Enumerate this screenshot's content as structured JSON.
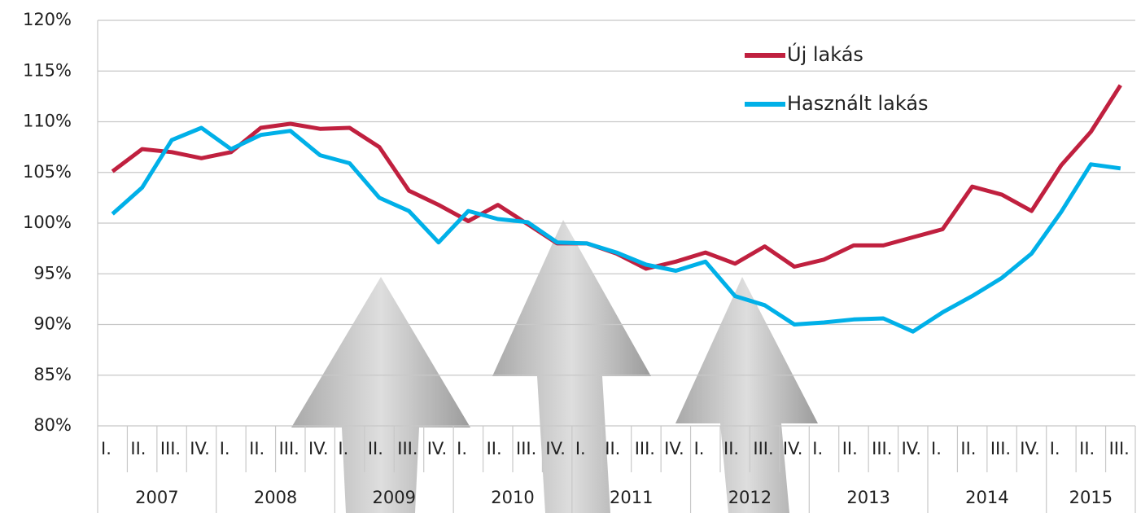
{
  "chart_data": {
    "type": "line",
    "categories": [
      "I.",
      "II.",
      "III.",
      "IV.",
      "I.",
      "II.",
      "III.",
      "IV.",
      "I.",
      "II.",
      "III.",
      "IV.",
      "I.",
      "II.",
      "III.",
      "IV.",
      "I.",
      "II.",
      "III.",
      "IV.",
      "I.",
      "II.",
      "III.",
      "IV.",
      "I.",
      "II.",
      "III.",
      "IV.",
      "I.",
      "II.",
      "III.",
      "IV.",
      "I.",
      "II.",
      "III."
    ],
    "years": [
      "2007",
      "2008",
      "2009",
      "2010",
      "2011",
      "2012",
      "2013",
      "2014",
      "2015"
    ],
    "series": [
      {
        "name": "Új lakás",
        "color": "#c0203f",
        "values": [
          105.1,
          107.3,
          107,
          106.4,
          107,
          109.4,
          109.8,
          109.3,
          109.4,
          107.5,
          103.2,
          101.8,
          100.2,
          101.8,
          99.9,
          98,
          98,
          97,
          95.5,
          96.2,
          97.1,
          96,
          97.7,
          95.7,
          96.4,
          97.8,
          97.8,
          98.6,
          99.4,
          103.6,
          102.8,
          101.2,
          105.7,
          109,
          113.6
        ]
      },
      {
        "name": "Használt lakás",
        "color": "#00b0e8",
        "values": [
          100.9,
          103.5,
          108.2,
          109.4,
          107.3,
          108.7,
          109.1,
          106.7,
          105.9,
          102.5,
          101.2,
          98.1,
          101.2,
          100.4,
          100.1,
          98.1,
          98,
          97.1,
          95.9,
          95.3,
          96.2,
          92.8,
          91.9,
          90,
          90.2,
          90.5,
          90.6,
          89.3,
          91.2,
          92.8,
          94.6,
          97,
          101.1,
          105.8,
          105.4
        ]
      }
    ],
    "ylim": [
      80,
      120
    ],
    "yticks": [
      {
        "value": 80,
        "label": "80%"
      },
      {
        "value": 85,
        "label": "85%"
      },
      {
        "value": 90,
        "label": "90%"
      },
      {
        "value": 95,
        "label": "95%"
      },
      {
        "value": 100,
        "label": "100%"
      },
      {
        "value": 105,
        "label": "105%"
      },
      {
        "value": 110,
        "label": "110%"
      },
      {
        "value": 115,
        "label": "115%"
      },
      {
        "value": 120,
        "label": "120%"
      }
    ],
    "grid": true,
    "legend": "top-right"
  }
}
